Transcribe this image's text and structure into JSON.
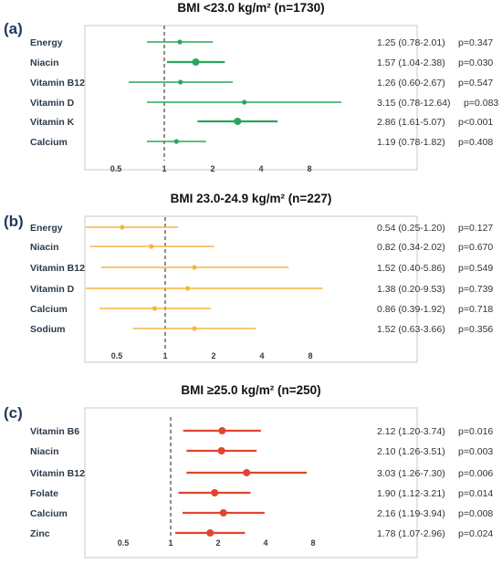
{
  "chart_data": [
    {
      "type": "forest",
      "panel": "(a)",
      "title": "BMI <23.0 kg/m² (n=1730)",
      "x_ticks": [
        "0.5",
        "1",
        "2",
        "4",
        "8"
      ],
      "x_scale": "log",
      "reference_line": 1,
      "color": "#2aa65a",
      "rows": [
        {
          "label": "Energy",
          "or": 1.25,
          "ci": [
            0.78,
            2.01
          ],
          "p": "p=0.347",
          "text": "1.25 (0.78-2.01)",
          "bold": false
        },
        {
          "label": "Niacin",
          "or": 1.57,
          "ci": [
            1.04,
            2.38
          ],
          "p": "p=0.030",
          "text": "1.57 (1.04-2.38)",
          "bold": true
        },
        {
          "label": "Vitamin B12",
          "or": 1.26,
          "ci": [
            0.6,
            2.67
          ],
          "p": "p=0.547",
          "text": "1.26 (0.60-2.67)",
          "bold": false
        },
        {
          "label": "Vitamin D",
          "or": 3.15,
          "ci": [
            0.78,
            12.64
          ],
          "p": "p=0.083",
          "text": "3.15 (0.78-12.64)",
          "bold": false
        },
        {
          "label": "Vitamin K",
          "or": 2.86,
          "ci": [
            1.61,
            5.07
          ],
          "p": "p<0.001",
          "text": "2.86 (1.61-5.07)",
          "bold": true
        },
        {
          "label": "Calcium",
          "or": 1.19,
          "ci": [
            0.78,
            1.82
          ],
          "p": "p=0.408",
          "text": "1.19 (0.78-1.82)",
          "bold": false
        }
      ]
    },
    {
      "type": "forest",
      "panel": "(b)",
      "title": "BMI 23.0-24.9 kg/m² (n=227)",
      "x_ticks": [
        "0.5",
        "1",
        "2",
        "4",
        "8"
      ],
      "x_scale": "log",
      "reference_line": 1,
      "color": "#f5b642",
      "rows": [
        {
          "label": "Energy",
          "or": 0.54,
          "ci": [
            0.25,
            1.2
          ],
          "p": "p=0.127",
          "text": "0.54 (0.25-1.20)",
          "bold": false
        },
        {
          "label": "Niacin",
          "or": 0.82,
          "ci": [
            0.34,
            2.02
          ],
          "p": "p=0.670",
          "text": "0.82 (0.34-2.02)",
          "bold": false
        },
        {
          "label": "Vitamin B12",
          "or": 1.52,
          "ci": [
            0.4,
            5.86
          ],
          "p": "p=0.549",
          "text": "1.52 (0.40-5.86)",
          "bold": false
        },
        {
          "label": "Vitamin D",
          "or": 1.38,
          "ci": [
            0.2,
            9.53
          ],
          "p": "p=0.739",
          "text": "1.38 (0.20-9.53)",
          "bold": false
        },
        {
          "label": "Calcium",
          "or": 0.86,
          "ci": [
            0.39,
            1.92
          ],
          "p": "p=0.718",
          "text": "0.86 (0.39-1.92)",
          "bold": false
        },
        {
          "label": "Sodium",
          "or": 1.52,
          "ci": [
            0.63,
            3.66
          ],
          "p": "p=0.356",
          "text": "1.52 (0.63-3.66)",
          "bold": false
        }
      ]
    },
    {
      "type": "forest",
      "panel": "(c)",
      "title": "BMI ≥25.0 kg/m² (n=250)",
      "x_ticks": [
        "0.5",
        "1",
        "2",
        "4",
        "8"
      ],
      "x_scale": "log",
      "reference_line": 1,
      "color": "#e0452e",
      "rows": [
        {
          "label": "Vitamin B6",
          "or": 2.12,
          "ci": [
            1.2,
            3.74
          ],
          "p": "p=0.016",
          "text": "2.12 (1.20-3.74)",
          "bold": true
        },
        {
          "label": "Niacin",
          "or": 2.1,
          "ci": [
            1.26,
            3.51
          ],
          "p": "p=0.003",
          "text": "2.10 (1.26-3.51)",
          "bold": true
        },
        {
          "label": "Vitamin B12",
          "or": 3.03,
          "ci": [
            1.26,
            7.3
          ],
          "p": "p=0.006",
          "text": "3.03 (1.26-7.30)",
          "bold": true
        },
        {
          "label": "Folate",
          "or": 1.9,
          "ci": [
            1.12,
            3.21
          ],
          "p": "p=0.014",
          "text": "1.90 (1.12-3.21)",
          "bold": true
        },
        {
          "label": "Calcium",
          "or": 2.16,
          "ci": [
            1.19,
            3.94
          ],
          "p": "p=0.008",
          "text": "2.16 (1.19-3.94)",
          "bold": true
        },
        {
          "label": "Zinc",
          "or": 1.78,
          "ci": [
            1.07,
            2.96
          ],
          "p": "p=0.024",
          "text": "1.78 (1.07-2.96)",
          "bold": true
        }
      ]
    }
  ]
}
